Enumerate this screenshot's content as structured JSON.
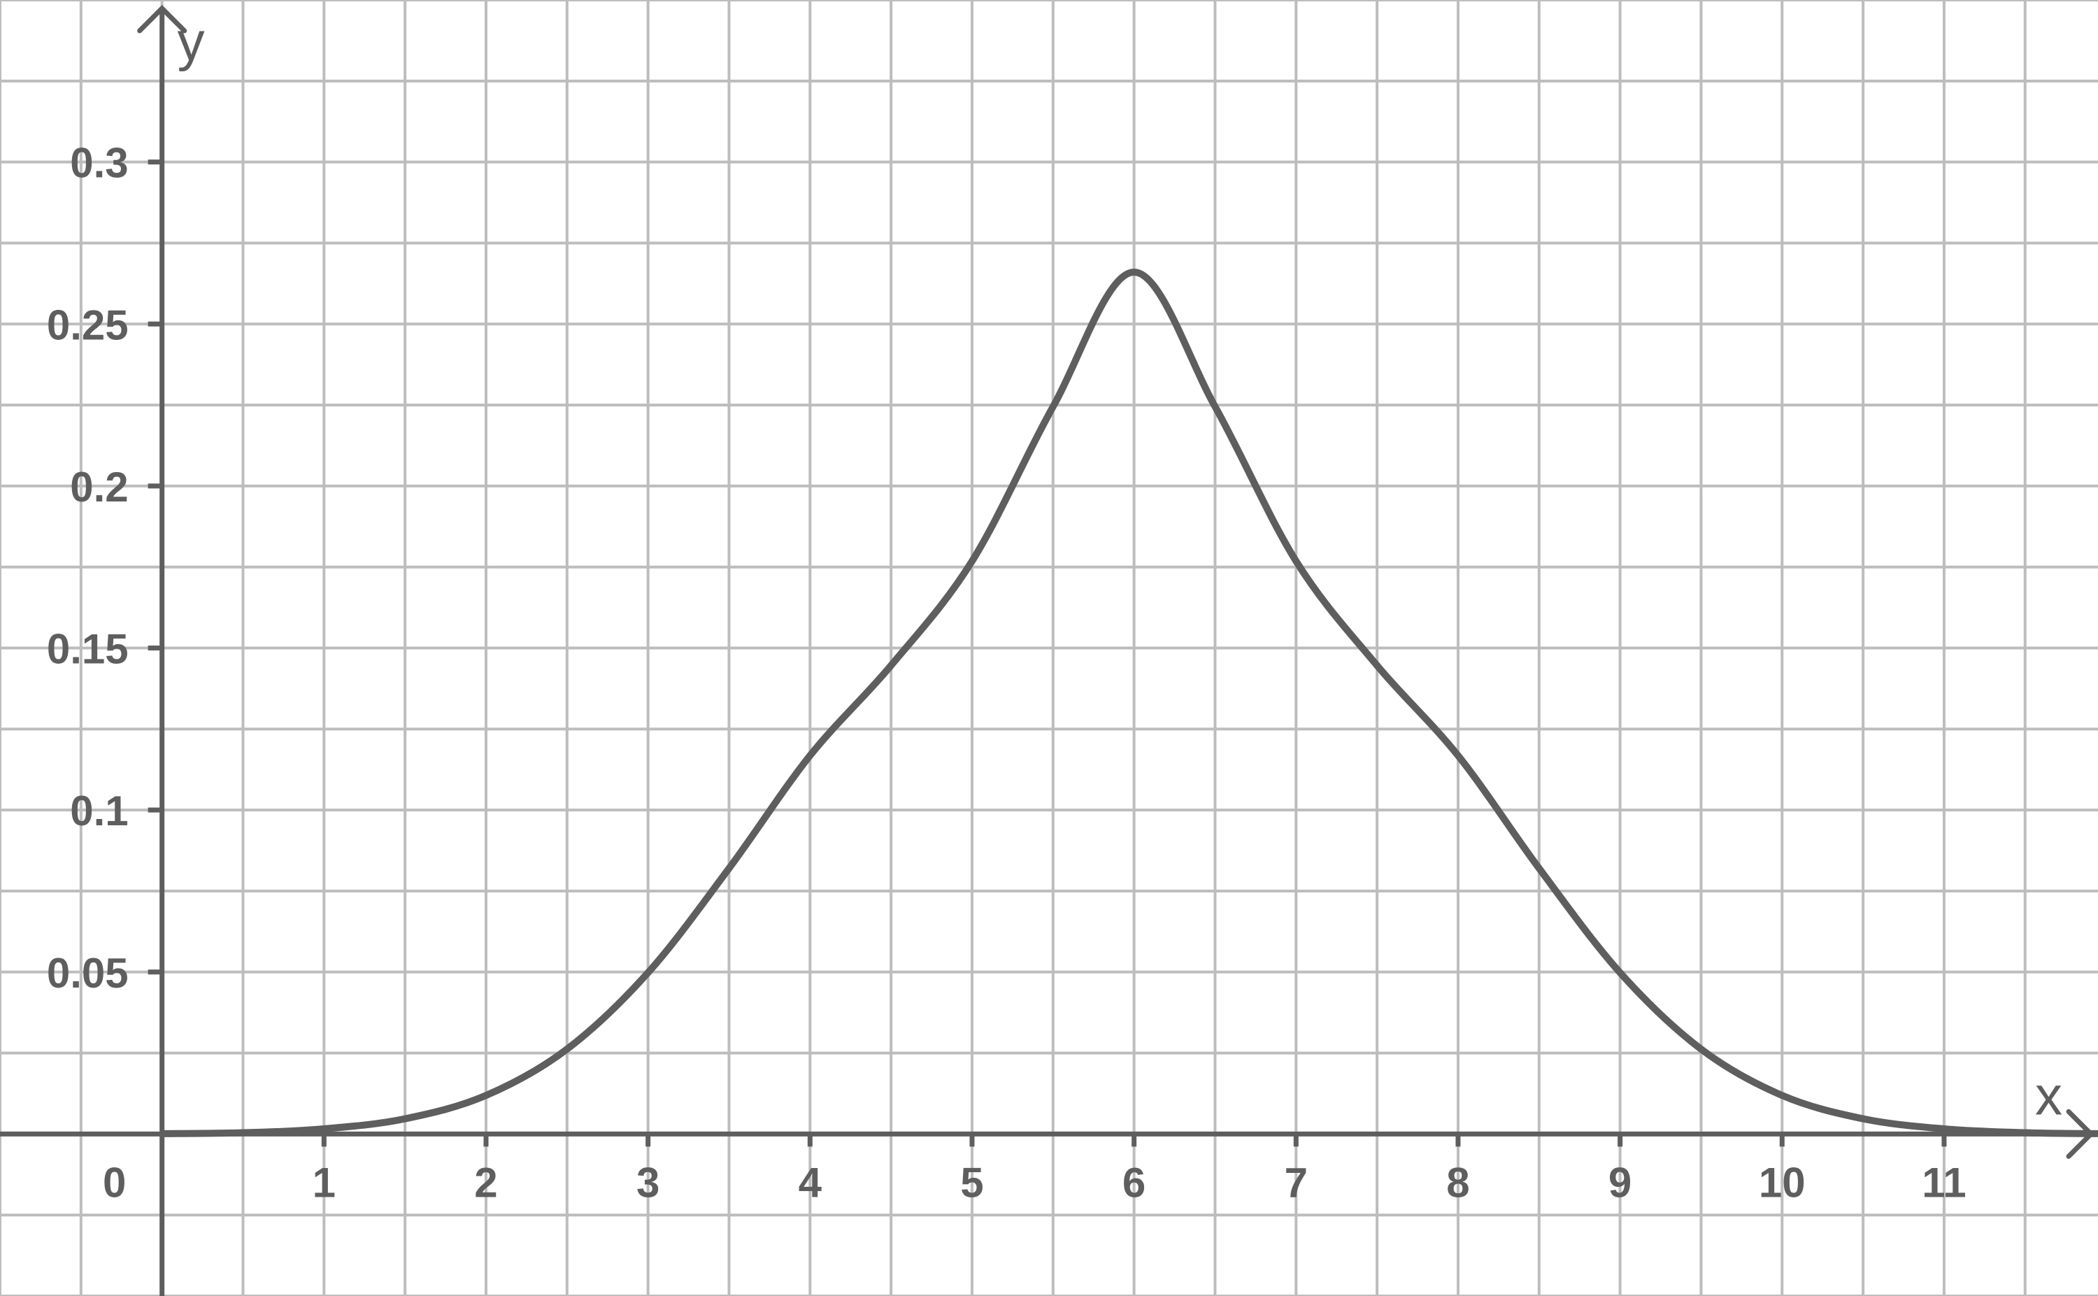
{
  "chart_data": {
    "type": "line",
    "title": "",
    "xlabel": "x",
    "ylabel": "y",
    "xlim": [
      -1.0,
      11.95
    ],
    "ylim": [
      -0.05,
      0.35
    ],
    "x_ticks": [
      1,
      2,
      3,
      4,
      5,
      6,
      7,
      8,
      9,
      10,
      11
    ],
    "x_tick_labels": [
      "1",
      "2",
      "3",
      "4",
      "5",
      "6",
      "7",
      "8",
      "9",
      "10",
      "11"
    ],
    "origin_label": "0",
    "y_ticks": [
      0.05,
      0.1,
      0.15,
      0.2,
      0.25,
      0.3
    ],
    "y_tick_labels": [
      "0.05",
      "0.1",
      "0.15",
      "0.2",
      "0.25",
      "0.3"
    ],
    "grid": true,
    "grid_step": {
      "x": 0.5,
      "y": 0.025
    },
    "colors": {
      "grid": "#bdbdbd",
      "axis": "#5e5e5e",
      "curve": "#5e5e5e"
    },
    "series": [
      {
        "x": [
          0,
          0.5,
          1,
          1.5,
          2,
          2.5,
          3,
          3.5,
          4,
          4.5,
          5,
          5.5,
          6,
          6.5,
          7,
          7.5,
          8,
          8.5,
          9,
          9.5,
          10,
          10.5,
          11,
          11.5,
          11.95
        ],
        "y": [
          0.0001,
          0.0004,
          0.0016,
          0.0047,
          0.0119,
          0.0262,
          0.0498,
          0.082,
          0.1168,
          0.1446,
          0.1768,
          0.2245,
          0.266,
          0.2245,
          0.1768,
          0.1446,
          0.1168,
          0.082,
          0.0498,
          0.0262,
          0.0119,
          0.0047,
          0.0016,
          0.0004,
          0.0001
        ]
      }
    ]
  }
}
